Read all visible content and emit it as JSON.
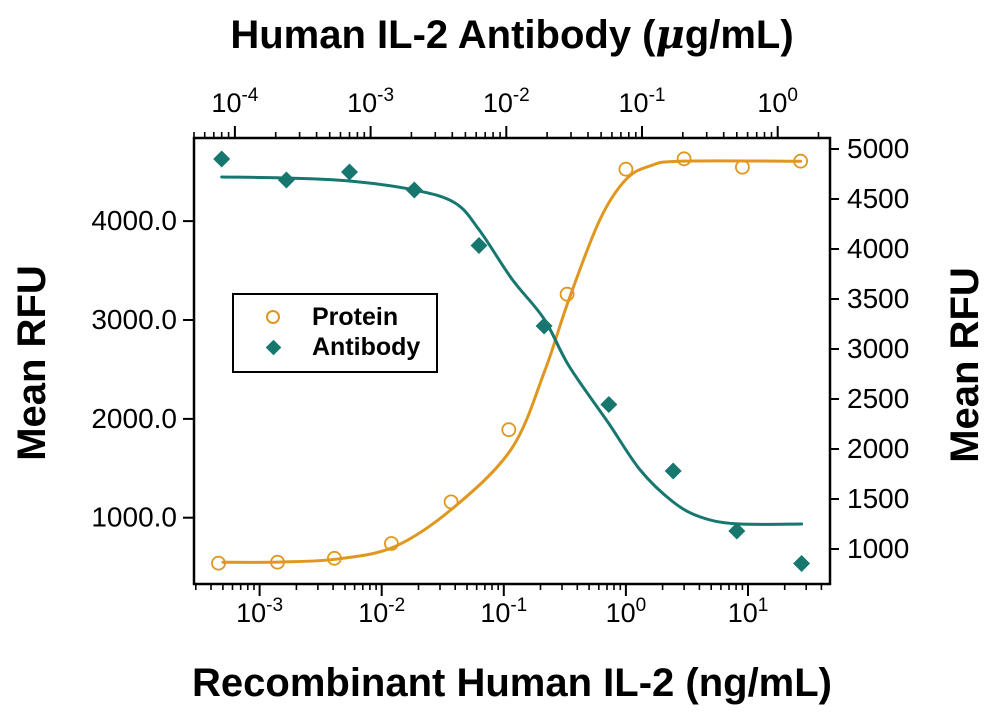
{
  "figure_type": "dose-response neutralization plot",
  "chart_data": {
    "type": "scatter",
    "subtype": "dose-response sigmoid curves with dual x and dual y axes",
    "grid": false,
    "background": "#ffffff",
    "axes": {
      "x_top": {
        "label": "Human IL-2 Antibody (μg/mL)",
        "label_parts": [
          "Human IL-2 Antibody (",
          "μ",
          "g/mL)"
        ],
        "scale": "log",
        "tick_exponents": [
          -4,
          -3,
          -2,
          -1,
          0
        ],
        "tick_labels": [
          "10^-4",
          "10^-3",
          "10^-2",
          "10^-1",
          "10^0"
        ],
        "min": 5e-05,
        "max": 2.43
      },
      "x_bottom": {
        "label": "Recombinant Human IL-2 (ng/mL)",
        "scale": "log",
        "tick_exponents": [
          -3,
          -2,
          -1,
          0,
          1
        ],
        "tick_labels": [
          "10^-3",
          "10^-2",
          "10^-1",
          "10^0",
          "10^1"
        ],
        "min": 0.00029,
        "max": 47
      },
      "y_left": {
        "label": "Mean RFU",
        "scale": "linear",
        "ticks": [
          1000,
          2000,
          3000,
          4000
        ],
        "tick_labels": [
          "1000.0",
          "2000.0",
          "3000.0",
          "4000.0"
        ],
        "min": 330,
        "max": 4840
      },
      "y_right": {
        "label": "Mean RFU",
        "scale": "linear",
        "ticks": [
          1000,
          1500,
          2000,
          2500,
          3000,
          3500,
          4000,
          4500,
          5000
        ],
        "tick_labels": [
          "1000",
          "1500",
          "2000",
          "2500",
          "3000",
          "3500",
          "4000",
          "4500",
          "5000"
        ],
        "min": 650,
        "max": 5110
      }
    },
    "legend": {
      "position": "inside-left",
      "border": "#000000",
      "items": [
        {
          "label": "Protein",
          "marker": "open-circle",
          "color": "#E09720"
        },
        {
          "label": "Antibody",
          "marker": "filled-diamond",
          "color": "#17776F"
        }
      ]
    },
    "series": [
      {
        "name": "Protein",
        "marker": "open-circle",
        "color": "#E09720",
        "x_axis": "x_bottom",
        "y_axis": "y_left",
        "x_units": "ng/mL",
        "y_units": "Mean RFU (left axis)",
        "points": [
          [
            0.00046,
            540
          ],
          [
            0.0014,
            550
          ],
          [
            0.0041,
            590
          ],
          [
            0.012,
            740
          ],
          [
            0.037,
            1160
          ],
          [
            0.11,
            1890
          ],
          [
            0.33,
            3260
          ],
          [
            1,
            4525
          ],
          [
            3,
            4630
          ],
          [
            9,
            4545
          ],
          [
            27,
            4605
          ]
        ],
        "curve": [
          [
            0.0005,
            550
          ],
          [
            0.0015,
            552
          ],
          [
            0.0045,
            585
          ],
          [
            0.013,
            712
          ],
          [
            0.039,
            1105
          ],
          [
            0.116,
            1700
          ],
          [
            0.217,
            2490
          ],
          [
            0.34,
            3200
          ],
          [
            0.61,
            4010
          ],
          [
            1.0,
            4420
          ],
          [
            1.6,
            4560
          ],
          [
            2.8,
            4605
          ],
          [
            27,
            4605
          ]
        ]
      },
      {
        "name": "Antibody",
        "marker": "filled-diamond",
        "color": "#17776F",
        "x_axis": "x_top",
        "y_axis": "y_right",
        "x_units": "µg/mL",
        "y_units": "Mean RFU (right axis)",
        "points": [
          [
            8e-05,
            4900
          ],
          [
            0.00024,
            4690
          ],
          [
            0.0007,
            4770
          ],
          [
            0.0021,
            4590
          ],
          [
            0.0063,
            4035
          ],
          [
            0.019,
            3230
          ],
          [
            0.057,
            2445
          ],
          [
            0.17,
            1780
          ],
          [
            0.5,
            1180
          ],
          [
            1.5,
            855
          ]
        ],
        "curve": [
          [
            8e-05,
            4720
          ],
          [
            0.00024,
            4710
          ],
          [
            0.0007,
            4680
          ],
          [
            0.0021,
            4590
          ],
          [
            0.0042,
            4460
          ],
          [
            0.0064,
            4180
          ],
          [
            0.011,
            3700
          ],
          [
            0.019,
            3300
          ],
          [
            0.029,
            2830
          ],
          [
            0.056,
            2270
          ],
          [
            0.097,
            1790
          ],
          [
            0.17,
            1470
          ],
          [
            0.27,
            1320
          ],
          [
            0.49,
            1252
          ],
          [
            1.5,
            1250
          ]
        ]
      }
    ]
  }
}
